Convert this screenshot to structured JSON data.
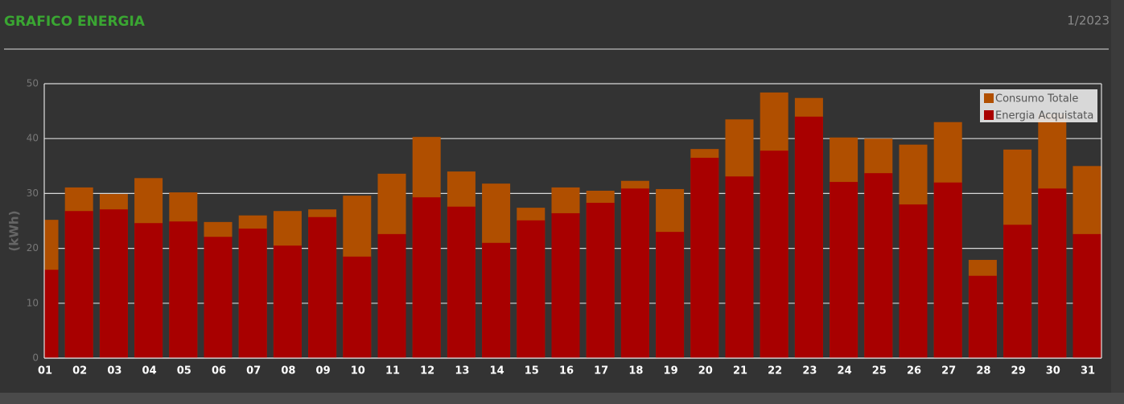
{
  "chart_data": {
    "type": "bar",
    "barmode": "overlay",
    "title": "GRAFICO ENERGIA",
    "subtitle": "1/2023",
    "y_label": "(kWh)",
    "categories": [
      "01",
      "02",
      "03",
      "04",
      "05",
      "06",
      "07",
      "08",
      "09",
      "10",
      "11",
      "12",
      "13",
      "14",
      "15",
      "16",
      "17",
      "18",
      "19",
      "20",
      "21",
      "22",
      "23",
      "24",
      "25",
      "26",
      "27",
      "28",
      "29",
      "30",
      "31"
    ],
    "series": [
      {
        "name": "Consumo Totale",
        "color": "#b04f00",
        "values": [
          25.2,
          31.1,
          29.9,
          32.8,
          30.2,
          24.8,
          26.0,
          26.8,
          27.1,
          29.6,
          33.6,
          40.3,
          34.0,
          31.8,
          27.4,
          31.1,
          30.5,
          32.3,
          30.8,
          38.1,
          43.5,
          48.4,
          47.4,
          40.2,
          40.0,
          38.9,
          43.0,
          17.9,
          38.0,
          44.5,
          35.0
        ]
      },
      {
        "name": "Energia Acquistata",
        "color": "#a80000",
        "values": [
          16.1,
          26.8,
          27.1,
          24.6,
          24.9,
          22.1,
          23.6,
          20.5,
          25.7,
          18.5,
          22.6,
          29.3,
          27.6,
          21.0,
          25.1,
          26.4,
          28.3,
          30.9,
          23.0,
          36.5,
          33.1,
          37.8,
          44.0,
          32.1,
          33.7,
          28.0,
          32.0,
          15.0,
          24.3,
          30.9,
          22.6
        ]
      }
    ],
    "ylim": [
      0,
      50
    ],
    "yticks": [
      0,
      10,
      20,
      30,
      40,
      50
    ],
    "grid": true,
    "legend": "top-right"
  }
}
